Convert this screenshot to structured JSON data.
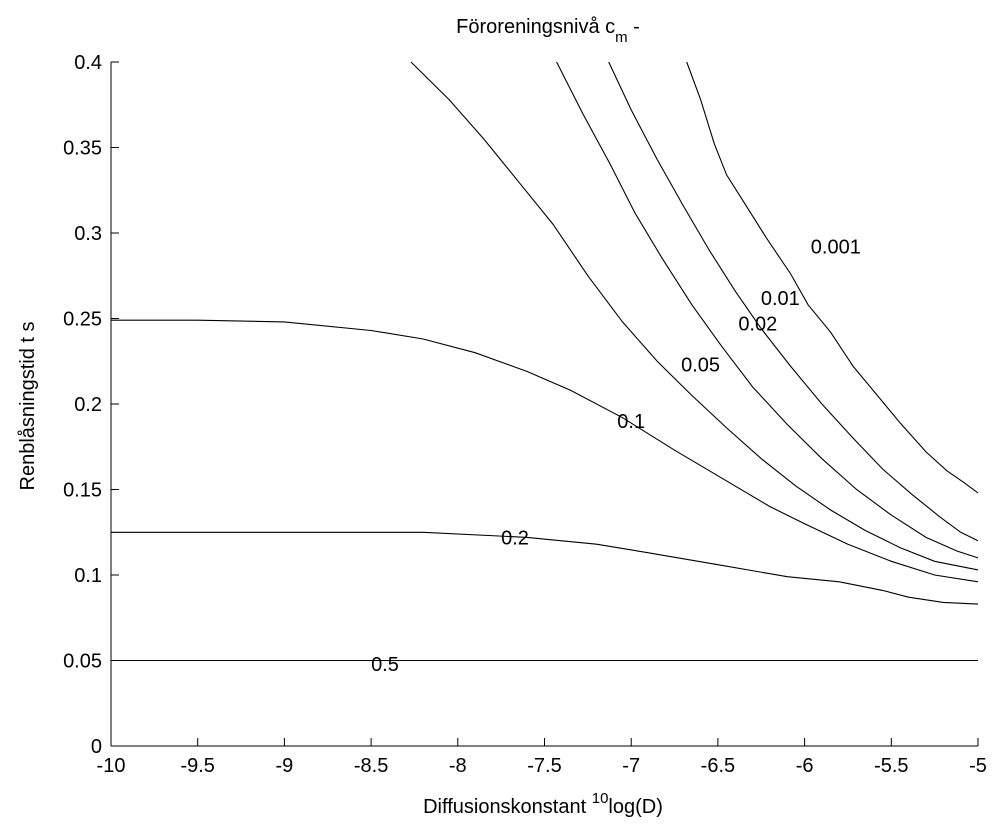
{
  "chart_data": {
    "type": "line",
    "title_main": "Föroreningsnivå  c",
    "title_sub": "m",
    "title_tail": "  -",
    "xlabel_main": "Diffusionskonstant  ",
    "xlabel_sup": "10",
    "xlabel_tail": "log(D)",
    "ylabel": "Renblåsningstid  t  s",
    "xlim": [
      -10,
      -5
    ],
    "ylim": [
      0,
      0.4
    ],
    "x_ticks": [
      -10,
      -9.5,
      -9,
      -8.5,
      -8,
      -7.5,
      -7,
      -6.5,
      -6,
      -5.5,
      -5
    ],
    "x_tick_labels": [
      "-10",
      "-9.5",
      "-9",
      "-8.5",
      "-8",
      "-7.5",
      "-7",
      "-6.5",
      "-6",
      "-5.5",
      "-5"
    ],
    "y_ticks": [
      0,
      0.05,
      0.1,
      0.15,
      0.2,
      0.25,
      0.3,
      0.35,
      0.4
    ],
    "y_tick_labels": [
      "0",
      "0.05",
      "0.1",
      "0.15",
      "0.2",
      "0.25",
      "0.3",
      "0.35",
      "0.4"
    ],
    "grid": false,
    "series": [
      {
        "name": "0.5",
        "label": {
          "x": -8.42,
          "y": 0.048
        },
        "points": [
          [
            -10,
            0.05
          ],
          [
            -5,
            0.05
          ]
        ]
      },
      {
        "name": "0.2",
        "label": {
          "x": -7.67,
          "y": 0.122
        },
        "points": [
          [
            -10,
            0.125
          ],
          [
            -8.2,
            0.125
          ],
          [
            -7.6,
            0.122
          ],
          [
            -7.2,
            0.118
          ],
          [
            -6.9,
            0.113
          ],
          [
            -6.5,
            0.106
          ],
          [
            -6.1,
            0.099
          ],
          [
            -5.8,
            0.096
          ],
          [
            -5.55,
            0.091
          ],
          [
            -5.4,
            0.087
          ],
          [
            -5.2,
            0.084
          ],
          [
            -5,
            0.083
          ]
        ]
      },
      {
        "name": "0.1",
        "label": {
          "x": -7.0,
          "y": 0.19
        },
        "points": [
          [
            -10,
            0.249
          ],
          [
            -9.5,
            0.249
          ],
          [
            -9.0,
            0.248
          ],
          [
            -8.5,
            0.243
          ],
          [
            -8.2,
            0.238
          ],
          [
            -7.9,
            0.23
          ],
          [
            -7.6,
            0.219
          ],
          [
            -7.35,
            0.208
          ],
          [
            -7.05,
            0.192
          ],
          [
            -6.75,
            0.173
          ],
          [
            -6.5,
            0.158
          ],
          [
            -6.2,
            0.14
          ],
          [
            -6.0,
            0.13
          ],
          [
            -5.75,
            0.118
          ],
          [
            -5.5,
            0.108
          ],
          [
            -5.25,
            0.1
          ],
          [
            -5,
            0.096
          ]
        ]
      },
      {
        "name": "0.05",
        "label": {
          "x": -6.6,
          "y": 0.223
        },
        "points": [
          [
            -8.27,
            0.4
          ],
          [
            -8.05,
            0.378
          ],
          [
            -7.85,
            0.355
          ],
          [
            -7.65,
            0.33
          ],
          [
            -7.45,
            0.305
          ],
          [
            -7.25,
            0.275
          ],
          [
            -7.05,
            0.248
          ],
          [
            -6.85,
            0.225
          ],
          [
            -6.65,
            0.205
          ],
          [
            -6.45,
            0.186
          ],
          [
            -6.25,
            0.168
          ],
          [
            -6.05,
            0.152
          ],
          [
            -5.85,
            0.138
          ],
          [
            -5.65,
            0.126
          ],
          [
            -5.45,
            0.116
          ],
          [
            -5.25,
            0.108
          ],
          [
            -5,
            0.103
          ]
        ]
      },
      {
        "name": "0.02",
        "label": {
          "x": -6.27,
          "y": 0.247
        },
        "points": [
          [
            -7.43,
            0.4
          ],
          [
            -7.28,
            0.37
          ],
          [
            -7.12,
            0.34
          ],
          [
            -6.98,
            0.312
          ],
          [
            -6.82,
            0.285
          ],
          [
            -6.65,
            0.258
          ],
          [
            -6.48,
            0.234
          ],
          [
            -6.3,
            0.21
          ],
          [
            -6.1,
            0.188
          ],
          [
            -5.9,
            0.168
          ],
          [
            -5.7,
            0.15
          ],
          [
            -5.5,
            0.135
          ],
          [
            -5.3,
            0.122
          ],
          [
            -5.12,
            0.114
          ],
          [
            -5,
            0.11
          ]
        ]
      },
      {
        "name": "0.01",
        "label": {
          "x": -6.14,
          "y": 0.262
        },
        "points": [
          [
            -7.13,
            0.4
          ],
          [
            -7.0,
            0.372
          ],
          [
            -6.85,
            0.343
          ],
          [
            -6.7,
            0.316
          ],
          [
            -6.55,
            0.29
          ],
          [
            -6.4,
            0.266
          ],
          [
            -6.25,
            0.244
          ],
          [
            -6.08,
            0.222
          ],
          [
            -5.9,
            0.2
          ],
          [
            -5.72,
            0.18
          ],
          [
            -5.55,
            0.162
          ],
          [
            -5.38,
            0.147
          ],
          [
            -5.22,
            0.134
          ],
          [
            -5.1,
            0.125
          ],
          [
            -5,
            0.12
          ]
        ]
      },
      {
        "name": "0.001",
        "label": {
          "x": -5.82,
          "y": 0.292
        },
        "points": [
          [
            -6.68,
            0.4
          ],
          [
            -6.6,
            0.378
          ],
          [
            -6.52,
            0.352
          ],
          [
            -6.45,
            0.334
          ],
          [
            -6.35,
            0.318
          ],
          [
            -6.22,
            0.297
          ],
          [
            -6.08,
            0.276
          ],
          [
            -5.98,
            0.258
          ],
          [
            -5.85,
            0.242
          ],
          [
            -5.72,
            0.222
          ],
          [
            -5.58,
            0.205
          ],
          [
            -5.45,
            0.189
          ],
          [
            -5.3,
            0.172
          ],
          [
            -5.18,
            0.161
          ],
          [
            -5.08,
            0.154
          ],
          [
            -5,
            0.148
          ]
        ]
      }
    ]
  }
}
